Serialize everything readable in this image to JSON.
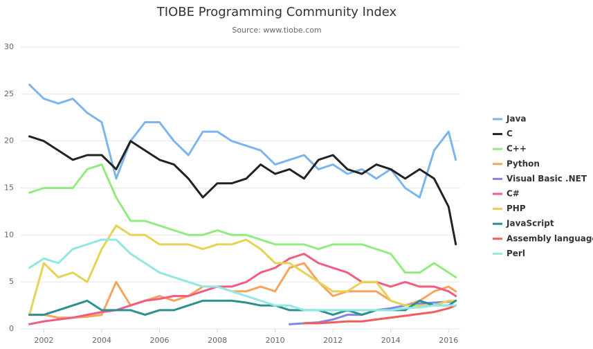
{
  "chart_data": {
    "type": "line",
    "title": "TIOBE Programming Community Index",
    "subtitle": "Source: www.tiobe.com",
    "x": [
      2001.5,
      2002,
      2002.5,
      2003,
      2003.5,
      2004,
      2004.5,
      2005,
      2005.5,
      2006,
      2006.5,
      2007,
      2007.5,
      2008,
      2008.5,
      2009,
      2009.5,
      2010,
      2010.5,
      2011,
      2011.5,
      2012,
      2012.5,
      2013,
      2013.5,
      2014,
      2014.5,
      2015,
      2015.5,
      2016,
      2016.25
    ],
    "xlim": [
      2001.2,
      2016.4
    ],
    "xticks": [
      2002,
      2004,
      2006,
      2008,
      2010,
      2012,
      2014,
      2016
    ],
    "ylim": [
      0,
      30
    ],
    "yticks": [
      0,
      5,
      10,
      15,
      20,
      25,
      30
    ],
    "grid": true,
    "legend": "right",
    "series": [
      {
        "name": "Java",
        "color": "#7cb5ec",
        "values": [
          26,
          24.5,
          24,
          24.5,
          23,
          22,
          16,
          20,
          22,
          22,
          20,
          18.5,
          21,
          21,
          20,
          19.5,
          19,
          17.5,
          18,
          18.5,
          17,
          17.5,
          16.5,
          17,
          16,
          17,
          15,
          14,
          19,
          21,
          18
        ]
      },
      {
        "name": "C",
        "color": "#222222",
        "values": [
          20.5,
          20,
          19,
          18,
          18.5,
          18.5,
          17,
          20,
          19,
          18,
          17.5,
          16,
          14,
          15.5,
          15.5,
          16,
          17.5,
          16.5,
          17,
          16,
          18,
          18.5,
          17,
          16.5,
          17.5,
          17,
          16,
          17,
          16,
          13,
          9
        ]
      },
      {
        "name": "C++",
        "color": "#90ed7d",
        "values": [
          14.5,
          15,
          15,
          15,
          17,
          17.5,
          14,
          11.5,
          11.5,
          11,
          10.5,
          10,
          10,
          10.5,
          10,
          10,
          9.5,
          9,
          9,
          9,
          8.5,
          9,
          9,
          9,
          8.5,
          8,
          6,
          6,
          7,
          6,
          5.5
        ]
      },
      {
        "name": "Python",
        "color": "#f7a35c",
        "values": [
          1.5,
          1.5,
          1.2,
          1.2,
          1.3,
          1.5,
          5,
          2.5,
          3,
          3.5,
          3,
          3.5,
          4.5,
          4.5,
          4,
          4,
          4.5,
          4,
          6.5,
          7,
          5,
          3.5,
          4,
          4,
          4,
          3,
          2.5,
          3,
          4,
          4.5,
          4
        ]
      },
      {
        "name": "Visual Basic .NET",
        "color": "#8085e9",
        "values": [
          null,
          null,
          null,
          null,
          null,
          null,
          null,
          null,
          null,
          null,
          null,
          null,
          null,
          null,
          null,
          null,
          null,
          null,
          0.5,
          0.6,
          0.7,
          1,
          1.5,
          1.5,
          2,
          2.2,
          2.5,
          2.7,
          2.8,
          2.9,
          3
        ]
      },
      {
        "name": "C#",
        "color": "#f15c80",
        "values": [
          0.5,
          0.8,
          1,
          1.2,
          1.5,
          1.8,
          2,
          2.5,
          3,
          3.2,
          3.5,
          3.5,
          4,
          4.5,
          4.5,
          5,
          6,
          6.5,
          7.5,
          8,
          7,
          6.5,
          6,
          5,
          5,
          4.5,
          5,
          4.5,
          4.5,
          4,
          3.5
        ]
      },
      {
        "name": "PHP",
        "color": "#e4d354",
        "values": [
          1.5,
          7,
          5.5,
          6,
          5,
          8.5,
          11,
          10,
          10,
          9,
          9,
          9,
          8.5,
          9,
          9,
          9.5,
          8.5,
          7,
          7,
          6,
          5,
          4,
          4,
          5,
          5,
          3,
          2.5,
          2.5,
          2.5,
          3,
          3
        ]
      },
      {
        "name": "JavaScript",
        "color": "#2b908f",
        "values": [
          1.5,
          1.5,
          2,
          2.5,
          3,
          2,
          2,
          2,
          1.5,
          2,
          2,
          2.5,
          3,
          3,
          3,
          2.8,
          2.5,
          2.5,
          2,
          2,
          2,
          1.5,
          2,
          1.5,
          2,
          2,
          2,
          3,
          2.5,
          2.5,
          3
        ]
      },
      {
        "name": "Assembly language",
        "color": "#f45b5b",
        "values": [
          null,
          null,
          null,
          null,
          null,
          null,
          null,
          null,
          null,
          null,
          null,
          null,
          null,
          null,
          null,
          null,
          null,
          null,
          null,
          0.6,
          0.6,
          0.7,
          0.8,
          0.8,
          1,
          1.2,
          1.4,
          1.6,
          1.8,
          2.2,
          2.5
        ]
      },
      {
        "name": "Perl",
        "color": "#91e8e1",
        "values": [
          6.5,
          7.5,
          7,
          8.5,
          9,
          9.5,
          9.5,
          8,
          7,
          6,
          5.5,
          5,
          4.5,
          4.5,
          4,
          3.5,
          3,
          2.5,
          2.5,
          2,
          2,
          2,
          2,
          2,
          2,
          2,
          2.2,
          2.3,
          2.5,
          2.5,
          2.5
        ]
      }
    ]
  }
}
